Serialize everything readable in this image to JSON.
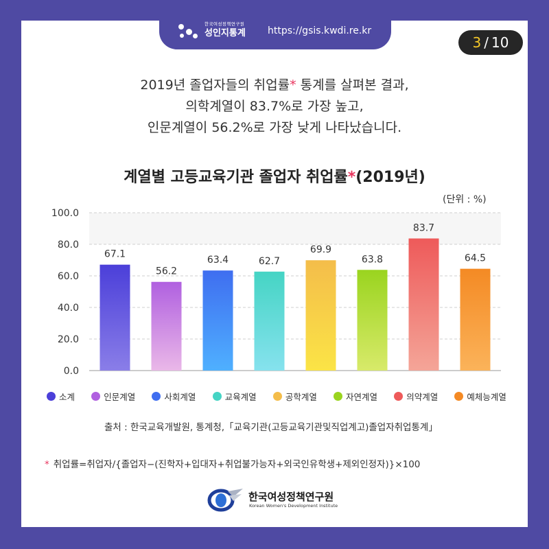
{
  "header": {
    "org_small": "한국여성정책연구원",
    "brand": "성인지통계",
    "url": "https://gsis.kwdi.re.kr"
  },
  "pager": {
    "current": "3",
    "separator": "/",
    "total": "10"
  },
  "headline": [
    {
      "parts": [
        {
          "t": "2019년 졸업자들의 취업률",
          "hl": false
        },
        {
          "t": "*",
          "hl": true
        },
        {
          "t": " 통계를 살펴본 결과,",
          "hl": false
        }
      ]
    },
    {
      "parts": [
        {
          "t": "의학계열이 83.7%로 가장 높고,",
          "hl": false
        }
      ]
    },
    {
      "parts": [
        {
          "t": "인문계열이 56.2%로 가장 낮게 나타났습니다.",
          "hl": false
        }
      ]
    }
  ],
  "colors": {
    "frame": "#4f4aa3",
    "accent": "#e8365f",
    "pill": "#262626",
    "pill_number": "#f5c829"
  },
  "chart_data": {
    "type": "bar",
    "title_parts": [
      {
        "t": "계열별 고등교육기관 졸업자 취업률",
        "hl": false
      },
      {
        "t": "*",
        "hl": true
      },
      {
        "t": "(2019년)",
        "hl": false
      }
    ],
    "unit_label": "(단위 : %)",
    "categories": [
      "소계",
      "인문계열",
      "사회계열",
      "교육계열",
      "공학계열",
      "자연계열",
      "의약계열",
      "예체능계열"
    ],
    "values": [
      67.1,
      56.2,
      63.4,
      62.7,
      69.9,
      63.8,
      83.7,
      64.5
    ],
    "value_labels": [
      "67.1",
      "56.2",
      "63.4",
      "62.7",
      "69.9",
      "63.8",
      "83.7",
      "64.5"
    ],
    "ylim": [
      0,
      100
    ],
    "yticks": [
      "0.0",
      "20.0",
      "40.0",
      "60.0",
      "80.0",
      "100.0"
    ],
    "grid": true,
    "legend": "bottom",
    "colors": [
      [
        "#4b3fd9",
        "#8a7ee8"
      ],
      [
        "#b060e0",
        "#eab8e8"
      ],
      [
        "#3f6ef0",
        "#4fb0ff"
      ],
      [
        "#45d4c4",
        "#86e2ee"
      ],
      [
        "#f4bd4a",
        "#fbe446"
      ],
      [
        "#9ad41f",
        "#d8ea6a"
      ],
      [
        "#ee5a5a",
        "#f4a598"
      ],
      [
        "#f48a24",
        "#fbb35a"
      ]
    ]
  },
  "source": "출처 : 한국교육개발원, 통계청,「교육기관(고등교육기관및직업계고)졸업자취업통계」",
  "footnote": {
    "star": "*",
    "text": "취업률=취업자/{졸업자−(진학자+입대자+취업불가능자+외국인유학생+제외인정자)}×100"
  },
  "footer_logo": {
    "name_ko": "한국여성정책연구원",
    "name_en": "Korean Women's Development Institute"
  }
}
